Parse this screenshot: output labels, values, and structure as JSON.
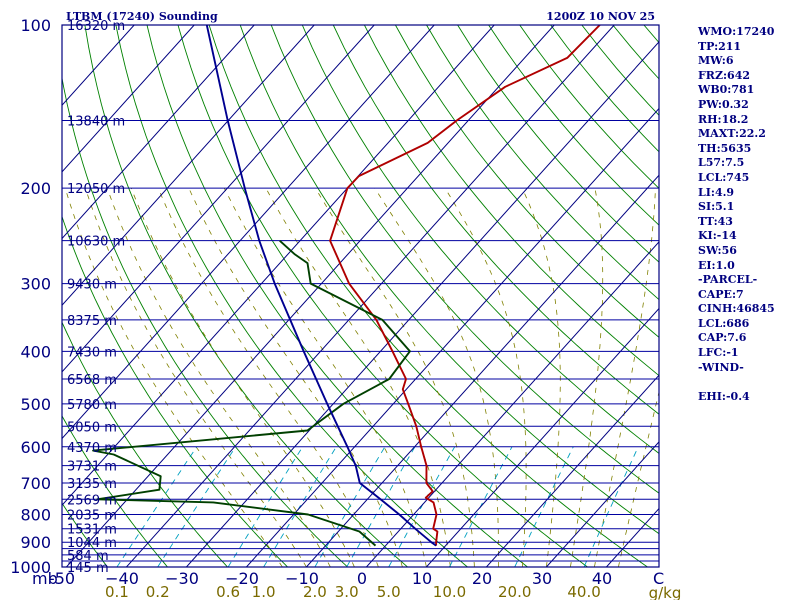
{
  "chart_data": {
    "type": "line",
    "chart_kind": "skew-T log-P sounding",
    "title": "LTBM (17240) Sounding",
    "time": "1200Z 10 NOV 25",
    "station": "LTBM",
    "wmo_id": "17240",
    "x_axis_units_label": "mb",
    "y_axis": {
      "quantity": "pressure",
      "units": "mb",
      "scale": "log",
      "range": [
        1000,
        100
      ],
      "tick_values": [
        100,
        200,
        300,
        400,
        500,
        600,
        700,
        800,
        900,
        1000
      ]
    },
    "x_axis": {
      "quantity": "temperature",
      "units": "C",
      "range": [
        -50,
        50
      ],
      "tick_values": [
        -50,
        -40,
        -30,
        -20,
        -10,
        0,
        10,
        20,
        30,
        40
      ],
      "tick_labels": [
        "-50",
        "−40",
        "−30",
        "−20",
        "−10",
        "0",
        "10",
        "20",
        "30",
        "40"
      ],
      "end_label": "C"
    },
    "mixing_ratio_axis": {
      "units": "g/kg",
      "values": [
        0.1,
        0.2,
        0.6,
        1.0,
        2.0,
        3.0,
        5.0,
        10.0,
        20.0,
        40.0
      ],
      "labels": [
        "0.1",
        "0.2",
        "0.6",
        "1.0",
        "2.0",
        "3.0",
        "5.0",
        "10.0",
        "20.0",
        "40.0"
      ]
    },
    "mandatory_levels": [
      {
        "p": 100,
        "label": "100"
      },
      {
        "p": 200,
        "label": "200"
      },
      {
        "p": 300,
        "label": "300"
      },
      {
        "p": 400,
        "label": "400"
      },
      {
        "p": 500,
        "label": "500"
      },
      {
        "p": 600,
        "label": "600"
      },
      {
        "p": 700,
        "label": "700"
      },
      {
        "p": 800,
        "label": "800"
      },
      {
        "p": 900,
        "label": "900"
      },
      {
        "p": 1000,
        "label": "1000"
      }
    ],
    "height_labels": [
      {
        "p": 100,
        "label": "16320 m"
      },
      {
        "p": 150,
        "label": "13840 m"
      },
      {
        "p": 200,
        "label": "12050 m"
      },
      {
        "p": 250,
        "label": "10630 m"
      },
      {
        "p": 300,
        "label": "9430 m"
      },
      {
        "p": 350,
        "label": "8375 m"
      },
      {
        "p": 400,
        "label": "7430 m"
      },
      {
        "p": 450,
        "label": "6568 m"
      },
      {
        "p": 500,
        "label": "5780 m"
      },
      {
        "p": 550,
        "label": "5050 m"
      },
      {
        "p": 600,
        "label": "4370 m"
      },
      {
        "p": 650,
        "label": "3731 m"
      },
      {
        "p": 700,
        "label": "3135 m"
      },
      {
        "p": 750,
        "label": "2569 m"
      },
      {
        "p": 800,
        "label": "2035 m"
      },
      {
        "p": 850,
        "label": "1531 m"
      },
      {
        "p": 900,
        "label": "1044 m"
      },
      {
        "p": 950,
        "label": "584 m"
      },
      {
        "p": 1000,
        "label": "145 m"
      }
    ],
    "series": [
      {
        "name": "Temperature",
        "color": "#b00000",
        "points": [
          {
            "p": 913,
            "t": 8.4
          },
          {
            "p": 900,
            "t": 7.9
          },
          {
            "p": 860,
            "t": 6.5
          },
          {
            "p": 850,
            "t": 5.4
          },
          {
            "p": 800,
            "t": 3.8
          },
          {
            "p": 760,
            "t": 1.5
          },
          {
            "p": 745,
            "t": -0.5
          },
          {
            "p": 725,
            "t": -0.3
          },
          {
            "p": 700,
            "t": -2.6
          },
          {
            "p": 650,
            "t": -5.2
          },
          {
            "p": 600,
            "t": -8.9
          },
          {
            "p": 550,
            "t": -12.8
          },
          {
            "p": 500,
            "t": -17.5
          },
          {
            "p": 470,
            "t": -20.6
          },
          {
            "p": 450,
            "t": -21.6
          },
          {
            "p": 400,
            "t": -28.0
          },
          {
            "p": 350,
            "t": -35.4
          },
          {
            "p": 300,
            "t": -45.4
          },
          {
            "p": 250,
            "t": -55.0
          },
          {
            "p": 200,
            "t": -60.0
          },
          {
            "p": 190,
            "t": -59.9
          },
          {
            "p": 165,
            "t": -53.4
          },
          {
            "p": 150,
            "t": -51.9
          },
          {
            "p": 130,
            "t": -48.9
          },
          {
            "p": 115,
            "t": -42.9
          },
          {
            "p": 100,
            "t": -42.4
          }
        ]
      },
      {
        "name": "Dew point",
        "color": "#004000",
        "points": [
          {
            "p": 913,
            "t": -1.7
          },
          {
            "p": 860,
            "t": -6.5
          },
          {
            "p": 800,
            "t": -17.6
          },
          {
            "p": 760,
            "t": -35.2
          },
          {
            "p": 750,
            "t": -55.0
          },
          {
            "p": 720,
            "t": -46.1
          },
          {
            "p": 680,
            "t": -47.9
          },
          {
            "p": 620,
            "t": -59.0
          },
          {
            "p": 610,
            "t": -63.0
          },
          {
            "p": 560,
            "t": -30.3
          },
          {
            "p": 500,
            "t": -28.3
          },
          {
            "p": 450,
            "t": -24.4
          },
          {
            "p": 400,
            "t": -25.1
          },
          {
            "p": 350,
            "t": -34.4
          },
          {
            "p": 300,
            "t": -51.8
          },
          {
            "p": 275,
            "t": -55.4
          },
          {
            "p": 265,
            "t": -58.8
          },
          {
            "p": 250,
            "t": -63.4
          }
        ]
      },
      {
        "name": "Parcel",
        "color": "#000090",
        "points": [
          {
            "p": 913,
            "t": 8.4
          },
          {
            "p": 900,
            "t": 7.1
          },
          {
            "p": 850,
            "t": 2.4
          },
          {
            "p": 800,
            "t": -2.4
          },
          {
            "p": 750,
            "t": -7.8
          },
          {
            "p": 700,
            "t": -13.7
          },
          {
            "p": 650,
            "t": -17.0
          },
          {
            "p": 600,
            "t": -21.2
          },
          {
            "p": 500,
            "t": -31.0
          },
          {
            "p": 400,
            "t": -42.8
          },
          {
            "p": 300,
            "t": -57.8
          },
          {
            "p": 250,
            "t": -66.8
          },
          {
            "p": 200,
            "t": -77.1
          },
          {
            "p": 150,
            "t": -90.1
          },
          {
            "p": 100,
            "t": -107.9
          }
        ]
      }
    ],
    "indices": [
      "WMO:17240",
      "TP:211",
      "MW:6",
      "FRZ:642",
      "WB0:781",
      "PW:0.32",
      "RH:18.2",
      "MAXT:22.2",
      "TH:5635",
      "L57:7.5",
      "LCL:745",
      "LI:4.9",
      "SI:5.1",
      "TT:43",
      "KI:-14",
      "SW:56",
      "EI:1.0",
      "-PARCEL-",
      "CAPE:7",
      "CINH:46845",
      "LCL:686",
      "CAP:7.6",
      "LFC:-1",
      "-WIND-",
      "",
      "EHI:-0.4"
    ],
    "colors": {
      "frame": "#000080",
      "isobar": "#0000a0",
      "isotherm": "#000080",
      "dry_adiabat": "#008000",
      "mixing_ratio": "#00a0c0",
      "moist_adiabat": "#808000"
    }
  }
}
